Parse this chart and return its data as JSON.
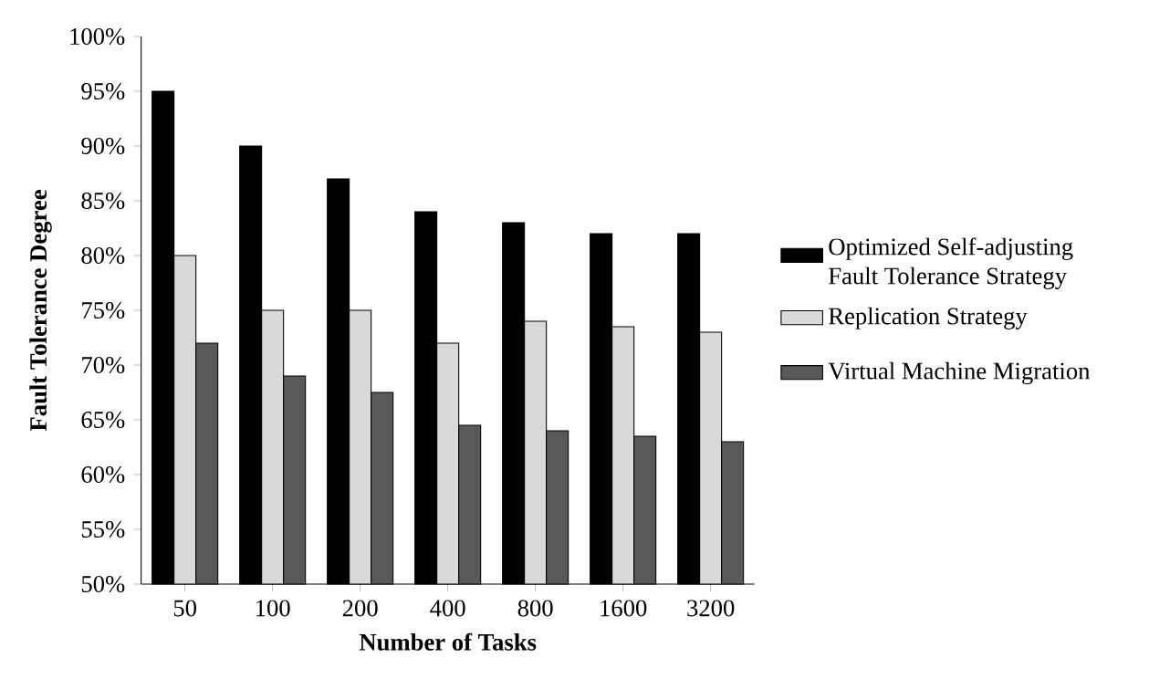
{
  "chart_data": {
    "type": "bar",
    "xlabel": "Number  of  Tasks",
    "ylabel": "Fault Tolerance Degree",
    "categories": [
      "50",
      "100",
      "200",
      "400",
      "800",
      "1600",
      "3200"
    ],
    "series": [
      {
        "name": "Optimized Self-adjusting Fault Tolerance Strategy",
        "color": "#000000",
        "values": [
          95,
          90,
          87,
          84,
          83,
          82,
          82
        ]
      },
      {
        "name": "Replication Strategy",
        "color": "#d9d9d9",
        "values": [
          80,
          75,
          75,
          72,
          74,
          73.5,
          73
        ]
      },
      {
        "name": "Virtual Machine Migration",
        "color": "#595959",
        "values": [
          72,
          69,
          67.5,
          64.5,
          64,
          63.5,
          63
        ]
      }
    ],
    "ylim": [
      50,
      100
    ],
    "yticks": [
      {
        "value": 50,
        "label": "50%"
      },
      {
        "value": 55,
        "label": "55%"
      },
      {
        "value": 60,
        "label": "60%"
      },
      {
        "value": 65,
        "label": "65%"
      },
      {
        "value": 70,
        "label": "70%"
      },
      {
        "value": 75,
        "label": "75%"
      },
      {
        "value": 80,
        "label": "80%"
      },
      {
        "value": 85,
        "label": "85%"
      },
      {
        "value": 90,
        "label": "90%"
      },
      {
        "value": 95,
        "label": "95%"
      },
      {
        "value": 100,
        "label": "100%"
      }
    ],
    "legend": "right",
    "grid": false
  }
}
